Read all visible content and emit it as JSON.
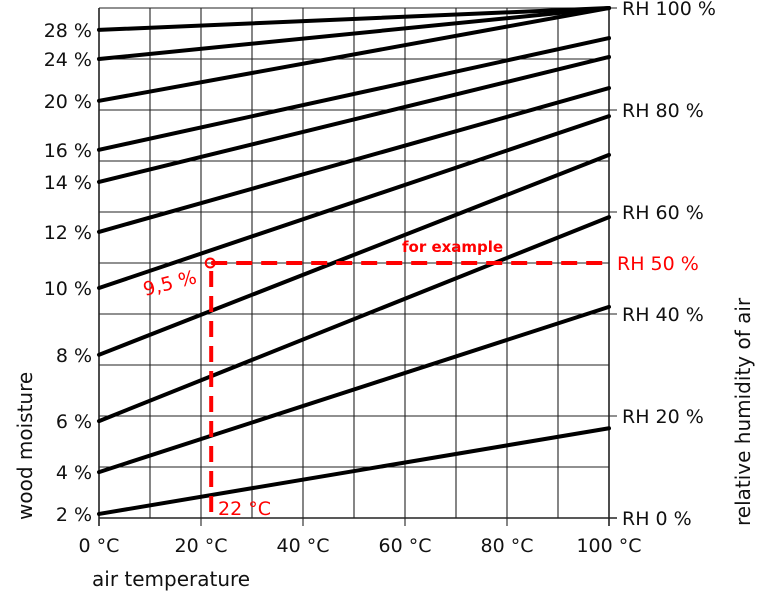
{
  "chart_data": {
    "type": "line",
    "xlabel": "air temperature",
    "ylabel_left": "wood moisture",
    "ylabel_right": "relative humidity of air",
    "xlim": [
      0,
      100
    ],
    "ylim": [
      0,
      100
    ],
    "grid": true,
    "x_ticks": [
      0,
      20,
      40,
      60,
      80,
      100
    ],
    "x_tick_labels": [
      "0 °C",
      "20 °C",
      "40 °C",
      "60 °C",
      "80 °C",
      "100 °C"
    ],
    "right_ticks": [
      0,
      20,
      40,
      60,
      80,
      100
    ],
    "right_tick_labels": [
      "RH 0 %",
      "RH 20 %",
      "RH 40 %",
      "RH 60 %",
      "RH 80 %",
      "RH 100 %"
    ],
    "series": [
      {
        "name": "28 %",
        "x": [
          0,
          100
        ],
        "y": [
          95.7,
          100
        ]
      },
      {
        "name": "24 %",
        "x": [
          0,
          100
        ],
        "y": [
          90.0,
          100
        ]
      },
      {
        "name": "20 %",
        "x": [
          0,
          100
        ],
        "y": [
          81.8,
          100
        ]
      },
      {
        "name": "16 %",
        "x": [
          0,
          100
        ],
        "y": [
          72.2,
          94.1
        ]
      },
      {
        "name": "14 %",
        "x": [
          0,
          100
        ],
        "y": [
          65.9,
          90.4
        ]
      },
      {
        "name": "12 %",
        "x": [
          0,
          100
        ],
        "y": [
          56.1,
          84.3
        ]
      },
      {
        "name": "10 %",
        "x": [
          0,
          100
        ],
        "y": [
          45.1,
          78.8
        ]
      },
      {
        "name": "8 %",
        "x": [
          0,
          100
        ],
        "y": [
          32.0,
          71.2
        ]
      },
      {
        "name": "6 %",
        "x": [
          0,
          100
        ],
        "y": [
          19.0,
          59.0
        ]
      },
      {
        "name": "4 %",
        "x": [
          0,
          100
        ],
        "y": [
          9.0,
          41.4
        ]
      },
      {
        "name": "2 %",
        "x": [
          0,
          100
        ],
        "y": [
          0.8,
          17.6
        ]
      }
    ],
    "example": {
      "temperature": 22,
      "rh": 50,
      "temperature_label": "22 °C",
      "rh_label": "RH 50 %",
      "moisture_label": "9,5 %",
      "note": "for example",
      "color": "#ff0000"
    }
  }
}
